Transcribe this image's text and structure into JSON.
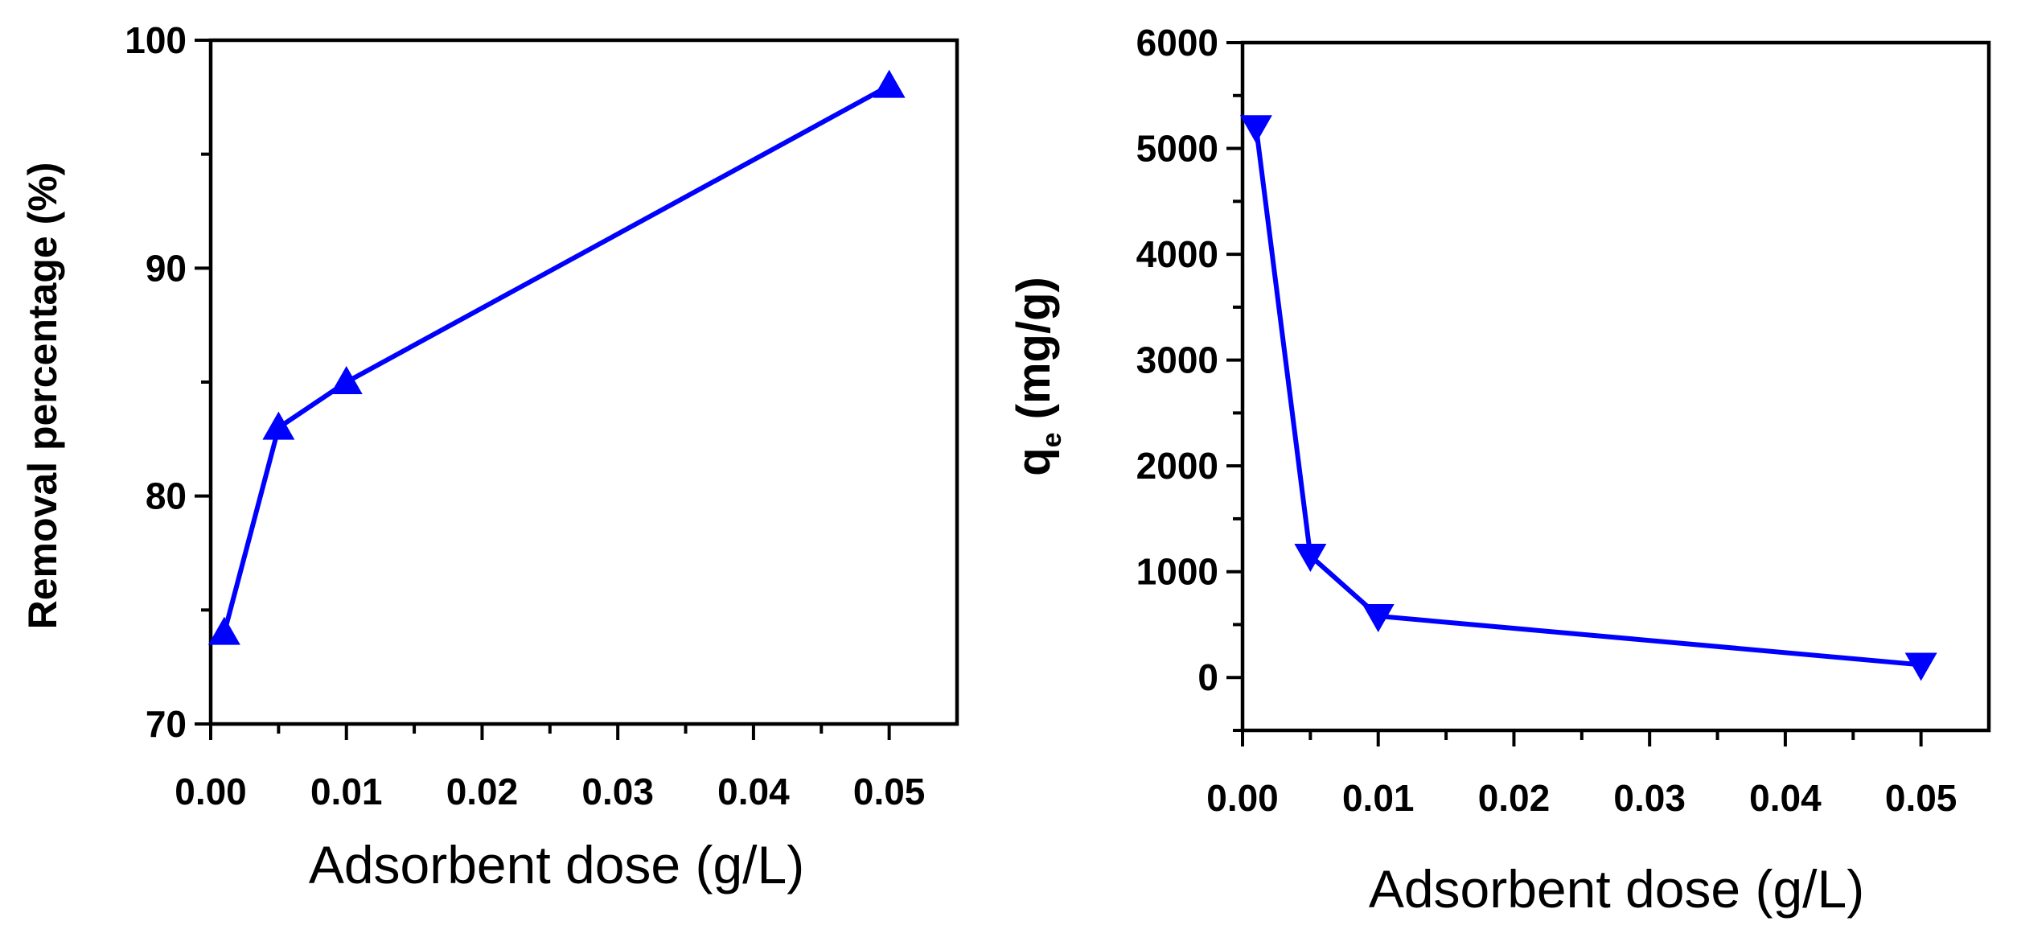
{
  "chart_data": [
    {
      "type": "line",
      "title": "",
      "xlabel": "Adsorbent dose (g/L)",
      "ylabel": "Removal percentage (%)",
      "xlim": [
        0.0,
        0.055
      ],
      "ylim": [
        70,
        100
      ],
      "xticks": [
        "0.00",
        "0.01",
        "0.02",
        "0.03",
        "0.04",
        "0.05"
      ],
      "yticks": [
        "70",
        "80",
        "90",
        "100"
      ],
      "marker": "triangle-up",
      "color": "#0000ff",
      "series": [
        {
          "name": "Removal percentage",
          "x": [
            0.001,
            0.005,
            0.01,
            0.05
          ],
          "y": [
            74,
            83,
            85,
            98
          ]
        }
      ]
    },
    {
      "type": "line",
      "title": "",
      "xlabel": "Adsorbent dose (g/L)",
      "ylabel_main": "q",
      "ylabel_sub": "e",
      "ylabel_unit": " (mg/g)",
      "xlim": [
        0.0,
        0.055
      ],
      "ylim": [
        -500,
        6000
      ],
      "xticks": [
        "0.00",
        "0.01",
        "0.02",
        "0.03",
        "0.04",
        "0.05"
      ],
      "yticks": [
        "0",
        "1000",
        "2000",
        "3000",
        "4000",
        "5000",
        "6000"
      ],
      "marker": "triangle-down",
      "color": "#0000ff",
      "series": [
        {
          "name": "qe",
          "x": [
            0.001,
            0.005,
            0.01,
            0.05
          ],
          "y": [
            5200,
            1150,
            580,
            120
          ]
        }
      ]
    }
  ]
}
